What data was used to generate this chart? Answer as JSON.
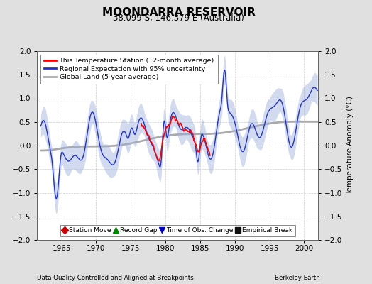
{
  "title": "MOONDARRA RESERVOIR",
  "subtitle": "38.099 S, 146.379 E (Australia)",
  "ylabel": "Temperature Anomaly (°C)",
  "xlabel_left": "Data Quality Controlled and Aligned at Breakpoints",
  "xlabel_right": "Berkeley Earth",
  "xlim": [
    1961.5,
    2002.0
  ],
  "ylim": [
    -2,
    2
  ],
  "yticks": [
    -2,
    -1.5,
    -1,
    -0.5,
    0,
    0.5,
    1,
    1.5,
    2
  ],
  "xticks": [
    1965,
    1970,
    1975,
    1980,
    1985,
    1990,
    1995,
    2000
  ],
  "background_color": "#e0e0e0",
  "plot_bg_color": "#ffffff",
  "legend_entries": [
    "This Temperature Station (12-month average)",
    "Regional Expectation with 95% uncertainty",
    "Global Land (5-year average)"
  ],
  "station_color": "#ff0000",
  "regional_color": "#2233cc",
  "regional_fill_color": "#9aaedd",
  "global_color": "#aaaaaa",
  "marker_legend": [
    {
      "label": "Station Move",
      "color": "#cc0000",
      "marker": "D"
    },
    {
      "label": "Record Gap",
      "color": "#008800",
      "marker": "^"
    },
    {
      "label": "Time of Obs. Change",
      "color": "#0000cc",
      "marker": "v"
    },
    {
      "label": "Empirical Break",
      "color": "#111111",
      "marker": "s"
    }
  ]
}
